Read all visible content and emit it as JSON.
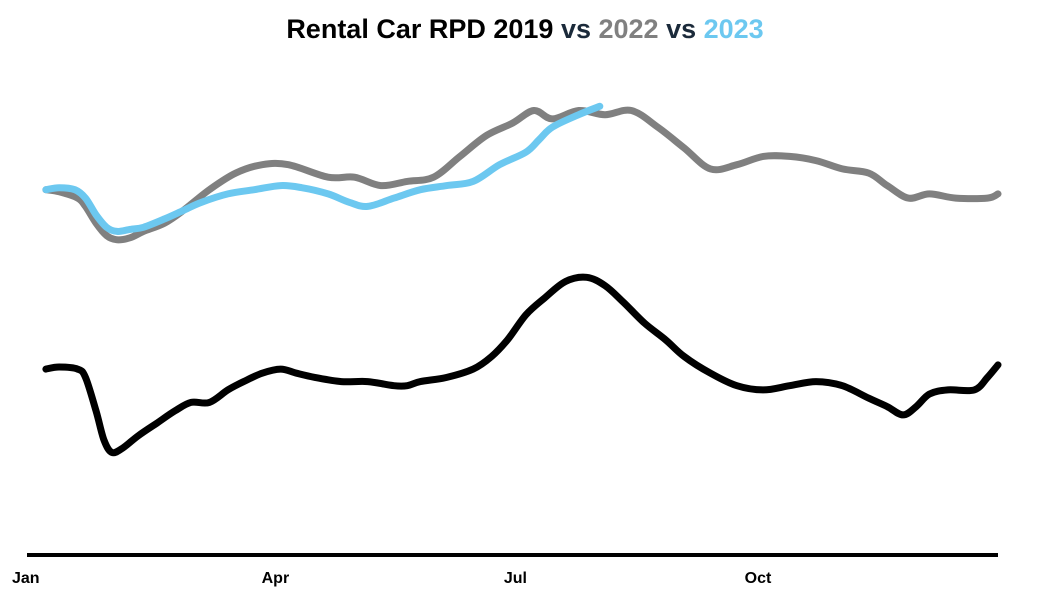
{
  "title": {
    "part1": "Rental Car RPD 2019",
    "vs1": " vs ",
    "part2": "2022",
    "vs2": " vs ",
    "part3": "2023"
  },
  "colors": {
    "s2019": "#000000",
    "s2022": "#808080",
    "s2023": "#6cc8f0",
    "vs": "#1b2a3a"
  },
  "chart_data": {
    "type": "line",
    "title": "Rental Car RPD 2019 vs 2022 vs 2023",
    "xlabel": "",
    "ylabel": "",
    "x_ticks": [
      {
        "label": "Jan",
        "day": 0
      },
      {
        "label": "Apr",
        "day": 90
      },
      {
        "label": "Jul",
        "day": 181
      },
      {
        "label": "Oct",
        "day": 273
      }
    ],
    "xlim": [
      0,
      364
    ],
    "ylim": [
      0,
      100
    ],
    "grid": false,
    "legend": "title",
    "series": [
      {
        "name": "2019",
        "color": "#000000",
        "points": [
          [
            3,
            35
          ],
          [
            8,
            35.5
          ],
          [
            15,
            35
          ],
          [
            18,
            33
          ],
          [
            22,
            25
          ],
          [
            25,
            18
          ],
          [
            28,
            15
          ],
          [
            32,
            16
          ],
          [
            38,
            19
          ],
          [
            45,
            22
          ],
          [
            52,
            25
          ],
          [
            58,
            27
          ],
          [
            65,
            27
          ],
          [
            72,
            30
          ],
          [
            78,
            32
          ],
          [
            85,
            34
          ],
          [
            92,
            35
          ],
          [
            98,
            34
          ],
          [
            105,
            33
          ],
          [
            115,
            32
          ],
          [
            125,
            32
          ],
          [
            135,
            31
          ],
          [
            140,
            31
          ],
          [
            145,
            32
          ],
          [
            155,
            33
          ],
          [
            165,
            35
          ],
          [
            172,
            38
          ],
          [
            178,
            42
          ],
          [
            185,
            48
          ],
          [
            192,
            52
          ],
          [
            200,
            56
          ],
          [
            208,
            57
          ],
          [
            215,
            55
          ],
          [
            222,
            51
          ],
          [
            230,
            46
          ],
          [
            238,
            42
          ],
          [
            245,
            38
          ],
          [
            255,
            34
          ],
          [
            265,
            31
          ],
          [
            275,
            30
          ],
          [
            285,
            31
          ],
          [
            295,
            32
          ],
          [
            305,
            31
          ],
          [
            315,
            28
          ],
          [
            322,
            26
          ],
          [
            328,
            24
          ],
          [
            333,
            26
          ],
          [
            338,
            29
          ],
          [
            345,
            30
          ],
          [
            355,
            30
          ],
          [
            360,
            33
          ],
          [
            364,
            36
          ]
        ]
      },
      {
        "name": "2022",
        "color": "#808080",
        "points": [
          [
            3,
            78
          ],
          [
            8,
            77.5
          ],
          [
            15,
            76
          ],
          [
            18,
            74
          ],
          [
            22,
            70
          ],
          [
            26,
            67
          ],
          [
            30,
            66
          ],
          [
            35,
            66.5
          ],
          [
            40,
            68
          ],
          [
            48,
            70
          ],
          [
            55,
            73
          ],
          [
            65,
            78
          ],
          [
            75,
            82
          ],
          [
            85,
            84
          ],
          [
            95,
            84
          ],
          [
            110,
            81
          ],
          [
            120,
            81
          ],
          [
            130,
            79
          ],
          [
            140,
            80
          ],
          [
            150,
            81
          ],
          [
            160,
            86
          ],
          [
            170,
            91
          ],
          [
            180,
            94
          ],
          [
            188,
            97
          ],
          [
            195,
            95
          ],
          [
            205,
            97
          ],
          [
            215,
            96
          ],
          [
            225,
            97
          ],
          [
            235,
            93
          ],
          [
            245,
            88
          ],
          [
            255,
            83
          ],
          [
            265,
            84
          ],
          [
            275,
            86
          ],
          [
            285,
            86
          ],
          [
            295,
            85
          ],
          [
            305,
            83
          ],
          [
            315,
            82
          ],
          [
            322,
            79
          ],
          [
            330,
            76
          ],
          [
            338,
            77
          ],
          [
            348,
            76
          ],
          [
            360,
            76
          ],
          [
            364,
            77
          ]
        ]
      },
      {
        "name": "2023",
        "color": "#6cc8f0",
        "points": [
          [
            3,
            78
          ],
          [
            8,
            78.5
          ],
          [
            14,
            78
          ],
          [
            18,
            76
          ],
          [
            22,
            72
          ],
          [
            26,
            69
          ],
          [
            30,
            68
          ],
          [
            35,
            68.5
          ],
          [
            40,
            69
          ],
          [
            48,
            71
          ],
          [
            55,
            73
          ],
          [
            62,
            75
          ],
          [
            72,
            77
          ],
          [
            82,
            78
          ],
          [
            92,
            79
          ],
          [
            100,
            78.5
          ],
          [
            110,
            77
          ],
          [
            118,
            75
          ],
          [
            125,
            74
          ],
          [
            135,
            76
          ],
          [
            145,
            78
          ],
          [
            155,
            79
          ],
          [
            165,
            80
          ],
          [
            175,
            84
          ],
          [
            185,
            87
          ],
          [
            190,
            90
          ],
          [
            195,
            93
          ],
          [
            205,
            96
          ],
          [
            213,
            98
          ]
        ]
      }
    ]
  }
}
